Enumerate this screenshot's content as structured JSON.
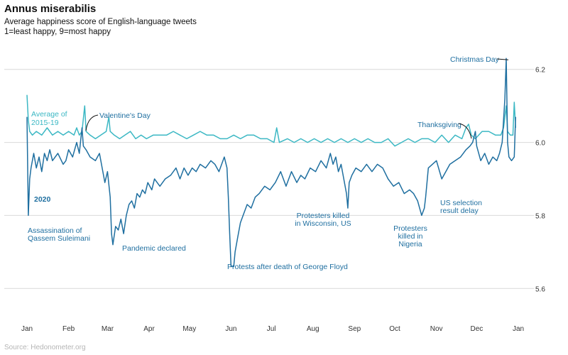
{
  "header": {
    "title": "Annus miserabilis",
    "subtitle_line1": "Average happiness score of English-language tweets",
    "subtitle_line2": "1=least happy, 9=most happy"
  },
  "source": "Source: Hedonometer.org",
  "colors": {
    "series_2020": "#1f6fa0",
    "series_avg": "#3cb8c4",
    "grid": "#d9d9d9",
    "text": "#333333"
  },
  "chart_data": {
    "type": "line",
    "title": "Annus miserabilis",
    "xlabel": "",
    "ylabel": "",
    "x_unit": "day of year",
    "x_ticks": [
      {
        "x": 1,
        "label": "Jan"
      },
      {
        "x": 32,
        "label": "Feb"
      },
      {
        "x": 61,
        "label": "Mar"
      },
      {
        "x": 92,
        "label": "Apr"
      },
      {
        "x": 122,
        "label": "May"
      },
      {
        "x": 153,
        "label": "Jun"
      },
      {
        "x": 183,
        "label": "Jul"
      },
      {
        "x": 214,
        "label": "Aug"
      },
      {
        "x": 245,
        "label": "Sep"
      },
      {
        "x": 275,
        "label": "Oct"
      },
      {
        "x": 306,
        "label": "Nov"
      },
      {
        "x": 336,
        "label": "Dec"
      },
      {
        "x": 367,
        "label": "Jan"
      }
    ],
    "y_ticks": [
      5.6,
      5.8,
      6.0,
      6.2
    ],
    "ylim": [
      5.55,
      6.25
    ],
    "xlim": [
      1,
      367
    ],
    "grid": true,
    "legend": "inline labels",
    "series": [
      {
        "name": "Average of 2015-19",
        "label_lines": [
          "Average of",
          "2015-19"
        ],
        "points": [
          [
            1,
            6.13
          ],
          [
            2,
            6.06
          ],
          [
            3,
            6.03
          ],
          [
            5,
            6.02
          ],
          [
            8,
            6.03
          ],
          [
            12,
            6.02
          ],
          [
            16,
            6.04
          ],
          [
            20,
            6.02
          ],
          [
            24,
            6.03
          ],
          [
            28,
            6.02
          ],
          [
            32,
            6.03
          ],
          [
            36,
            6.02
          ],
          [
            38,
            6.04
          ],
          [
            40,
            6.02
          ],
          [
            42,
            6.03
          ],
          [
            44,
            6.1
          ],
          [
            45,
            6.03
          ],
          [
            48,
            6.02
          ],
          [
            52,
            6.01
          ],
          [
            56,
            6.02
          ],
          [
            60,
            6.03
          ],
          [
            62,
            6.07
          ],
          [
            63,
            6.03
          ],
          [
            66,
            6.02
          ],
          [
            70,
            6.01
          ],
          [
            74,
            6.02
          ],
          [
            78,
            6.03
          ],
          [
            82,
            6.01
          ],
          [
            86,
            6.02
          ],
          [
            90,
            6.01
          ],
          [
            95,
            6.02
          ],
          [
            100,
            6.02
          ],
          [
            105,
            6.02
          ],
          [
            110,
            6.03
          ],
          [
            115,
            6.02
          ],
          [
            120,
            6.01
          ],
          [
            125,
            6.02
          ],
          [
            130,
            6.03
          ],
          [
            135,
            6.02
          ],
          [
            140,
            6.02
          ],
          [
            145,
            6.01
          ],
          [
            150,
            6.01
          ],
          [
            155,
            6.02
          ],
          [
            160,
            6.01
          ],
          [
            165,
            6.02
          ],
          [
            170,
            6.02
          ],
          [
            175,
            6.01
          ],
          [
            180,
            6.01
          ],
          [
            185,
            6.0
          ],
          [
            187,
            6.04
          ],
          [
            189,
            6.0
          ],
          [
            195,
            6.01
          ],
          [
            200,
            6.0
          ],
          [
            205,
            6.01
          ],
          [
            210,
            6.0
          ],
          [
            215,
            6.01
          ],
          [
            220,
            6.0
          ],
          [
            225,
            6.01
          ],
          [
            230,
            6.0
          ],
          [
            235,
            6.01
          ],
          [
            240,
            6.0
          ],
          [
            245,
            6.01
          ],
          [
            250,
            6.0
          ],
          [
            255,
            6.01
          ],
          [
            260,
            6.0
          ],
          [
            265,
            6.0
          ],
          [
            270,
            6.01
          ],
          [
            275,
            5.99
          ],
          [
            280,
            6.0
          ],
          [
            285,
            6.01
          ],
          [
            290,
            6.0
          ],
          [
            295,
            6.01
          ],
          [
            300,
            6.01
          ],
          [
            305,
            6.0
          ],
          [
            310,
            6.02
          ],
          [
            315,
            6.0
          ],
          [
            320,
            6.02
          ],
          [
            325,
            6.01
          ],
          [
            328,
            6.04
          ],
          [
            330,
            6.05
          ],
          [
            332,
            6.02
          ],
          [
            335,
            6.01
          ],
          [
            340,
            6.03
          ],
          [
            345,
            6.03
          ],
          [
            350,
            6.02
          ],
          [
            354,
            6.02
          ],
          [
            356,
            6.04
          ],
          [
            358,
            6.1
          ],
          [
            359,
            6.03
          ],
          [
            361,
            6.02
          ],
          [
            363,
            6.02
          ],
          [
            364,
            6.11
          ],
          [
            365,
            6.04
          ]
        ]
      },
      {
        "name": "2020",
        "label_lines": [
          "2020"
        ],
        "points": [
          [
            1,
            6.07
          ],
          [
            2,
            5.8
          ],
          [
            3,
            5.9
          ],
          [
            4,
            5.93
          ],
          [
            6,
            5.97
          ],
          [
            8,
            5.93
          ],
          [
            10,
            5.96
          ],
          [
            12,
            5.92
          ],
          [
            14,
            5.97
          ],
          [
            16,
            5.95
          ],
          [
            18,
            5.98
          ],
          [
            20,
            5.95
          ],
          [
            24,
            5.97
          ],
          [
            28,
            5.94
          ],
          [
            30,
            5.95
          ],
          [
            32,
            5.98
          ],
          [
            35,
            5.96
          ],
          [
            38,
            6.0
          ],
          [
            40,
            5.97
          ],
          [
            42,
            6.04
          ],
          [
            43,
            5.99
          ],
          [
            45,
            5.98
          ],
          [
            48,
            5.96
          ],
          [
            52,
            5.95
          ],
          [
            55,
            5.97
          ],
          [
            57,
            5.93
          ],
          [
            59,
            5.89
          ],
          [
            61,
            5.92
          ],
          [
            63,
            5.85
          ],
          [
            64,
            5.75
          ],
          [
            65,
            5.72
          ],
          [
            67,
            5.77
          ],
          [
            69,
            5.76
          ],
          [
            71,
            5.79
          ],
          [
            73,
            5.75
          ],
          [
            75,
            5.8
          ],
          [
            77,
            5.83
          ],
          [
            79,
            5.84
          ],
          [
            81,
            5.82
          ],
          [
            83,
            5.86
          ],
          [
            85,
            5.85
          ],
          [
            87,
            5.87
          ],
          [
            89,
            5.86
          ],
          [
            91,
            5.89
          ],
          [
            94,
            5.87
          ],
          [
            96,
            5.9
          ],
          [
            100,
            5.88
          ],
          [
            104,
            5.9
          ],
          [
            108,
            5.91
          ],
          [
            112,
            5.93
          ],
          [
            115,
            5.9
          ],
          [
            118,
            5.93
          ],
          [
            121,
            5.91
          ],
          [
            124,
            5.93
          ],
          [
            127,
            5.92
          ],
          [
            130,
            5.94
          ],
          [
            134,
            5.93
          ],
          [
            138,
            5.95
          ],
          [
            141,
            5.94
          ],
          [
            144,
            5.92
          ],
          [
            148,
            5.96
          ],
          [
            150,
            5.93
          ],
          [
            151,
            5.85
          ],
          [
            152,
            5.75
          ],
          [
            153,
            5.66
          ],
          [
            155,
            5.66
          ],
          [
            156,
            5.7
          ],
          [
            158,
            5.74
          ],
          [
            160,
            5.78
          ],
          [
            162,
            5.8
          ],
          [
            165,
            5.83
          ],
          [
            168,
            5.82
          ],
          [
            171,
            5.85
          ],
          [
            174,
            5.86
          ],
          [
            178,
            5.88
          ],
          [
            182,
            5.87
          ],
          [
            186,
            5.89
          ],
          [
            190,
            5.92
          ],
          [
            194,
            5.88
          ],
          [
            198,
            5.92
          ],
          [
            202,
            5.89
          ],
          [
            205,
            5.91
          ],
          [
            208,
            5.9
          ],
          [
            212,
            5.93
          ],
          [
            216,
            5.92
          ],
          [
            220,
            5.95
          ],
          [
            224,
            5.93
          ],
          [
            227,
            5.97
          ],
          [
            229,
            5.94
          ],
          [
            231,
            5.96
          ],
          [
            233,
            5.92
          ],
          [
            235,
            5.94
          ],
          [
            237,
            5.9
          ],
          [
            239,
            5.86
          ],
          [
            240,
            5.82
          ],
          [
            241,
            5.89
          ],
          [
            243,
            5.91
          ],
          [
            246,
            5.93
          ],
          [
            250,
            5.92
          ],
          [
            254,
            5.94
          ],
          [
            258,
            5.92
          ],
          [
            262,
            5.94
          ],
          [
            266,
            5.93
          ],
          [
            270,
            5.9
          ],
          [
            274,
            5.88
          ],
          [
            278,
            5.89
          ],
          [
            282,
            5.86
          ],
          [
            286,
            5.87
          ],
          [
            289,
            5.86
          ],
          [
            292,
            5.84
          ],
          [
            295,
            5.8
          ],
          [
            297,
            5.82
          ],
          [
            298,
            5.85
          ],
          [
            300,
            5.93
          ],
          [
            303,
            5.94
          ],
          [
            306,
            5.95
          ],
          [
            310,
            5.9
          ],
          [
            313,
            5.92
          ],
          [
            316,
            5.94
          ],
          [
            320,
            5.95
          ],
          [
            324,
            5.96
          ],
          [
            328,
            5.98
          ],
          [
            331,
            5.99
          ],
          [
            333,
            6.0
          ],
          [
            335,
            6.03
          ],
          [
            336,
            5.99
          ],
          [
            339,
            5.95
          ],
          [
            342,
            5.97
          ],
          [
            345,
            5.94
          ],
          [
            348,
            5.96
          ],
          [
            351,
            5.95
          ],
          [
            353,
            5.97
          ],
          [
            355,
            6.0
          ],
          [
            357,
            6.12
          ],
          [
            358,
            6.23
          ],
          [
            359,
            6.0
          ],
          [
            360,
            5.96
          ],
          [
            362,
            5.95
          ],
          [
            364,
            5.96
          ],
          [
            365,
            6.07
          ]
        ]
      }
    ],
    "annotations": [
      {
        "label": "Assassination of Qassem Suleimani",
        "lines": [
          "Assassination of",
          "Qassem Suleimani"
        ],
        "x": 3,
        "y": 5.8
      },
      {
        "label": "Valentine's Day",
        "lines": [
          "Valentine's Day"
        ],
        "x": 45,
        "y": 6.04
      },
      {
        "label": "Pandemic declared",
        "lines": [
          "Pandemic declared"
        ],
        "x": 71,
        "y": 5.72
      },
      {
        "label": "Protests after death of George Floyd",
        "lines": [
          "Protests after death of George Floyd"
        ],
        "x": 153,
        "y": 5.66
      },
      {
        "label": "Protesters killed in Wisconsin, US",
        "lines": [
          "Protesters killed",
          "in Wisconsin, US"
        ],
        "x": 237,
        "y": 5.82
      },
      {
        "label": "Protesters killed in Nigeria",
        "lines": [
          "Protesters",
          "killed in",
          "Nigeria"
        ],
        "x": 295,
        "y": 5.8
      },
      {
        "label": "US selection result delay",
        "lines": [
          "US selection",
          "result delay"
        ],
        "x": 310,
        "y": 5.9
      },
      {
        "label": "Thanksgiving",
        "lines": [
          "Thanksgiving"
        ],
        "x": 331,
        "y": 6.03
      },
      {
        "label": "Christmas Day",
        "lines": [
          "Christmas Day"
        ],
        "x": 358,
        "y": 6.23
      }
    ]
  }
}
